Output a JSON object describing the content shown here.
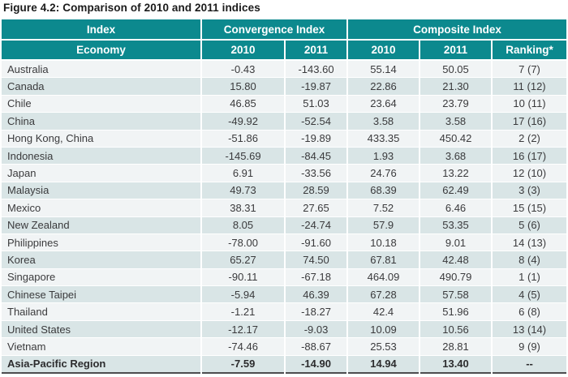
{
  "title": "Figure 4.2: Comparison of 2010 and 2011 indices",
  "colors": {
    "header_teal": "#0C898E",
    "row_light": "#F1F4F5",
    "row_alt": "#D9E5E6",
    "text_dark": "#3A3A3C",
    "header_text": "#FFFFFF",
    "bottom_border": "#4D4D4F"
  },
  "chart_data": {
    "type": "table",
    "title": "Figure 4.2: Comparison of 2010 and 2011 indices",
    "header_row1": {
      "index": "Index",
      "convergence": "Convergence Index",
      "composite": "Composite Index"
    },
    "header_row2": {
      "economy": "Economy",
      "conv_2010": "2010",
      "conv_2011": "2011",
      "comp_2010": "2010",
      "comp_2011": "2011",
      "ranking": "Ranking*"
    },
    "columns": [
      "Economy",
      "Convergence Index 2010",
      "Convergence Index 2011",
      "Composite Index 2010",
      "Composite Index 2011",
      "Ranking*"
    ],
    "rows": [
      {
        "economy": "Australia",
        "conv_2010": "-0.43",
        "conv_2011": "-143.60",
        "comp_2010": "55.14",
        "comp_2011": "50.05",
        "ranking": "7 (7)",
        "bold": false
      },
      {
        "economy": "Canada",
        "conv_2010": "15.80",
        "conv_2011": "-19.87",
        "comp_2010": "22.86",
        "comp_2011": "21.30",
        "ranking": "11 (12)",
        "bold": false
      },
      {
        "economy": "Chile",
        "conv_2010": "46.85",
        "conv_2011": "51.03",
        "comp_2010": "23.64",
        "comp_2011": "23.79",
        "ranking": "10 (11)",
        "bold": false
      },
      {
        "economy": "China",
        "conv_2010": "-49.92",
        "conv_2011": "-52.54",
        "comp_2010": "3.58",
        "comp_2011": "3.58",
        "ranking": "17 (16)",
        "bold": false
      },
      {
        "economy": "Hong Kong, China",
        "conv_2010": "-51.86",
        "conv_2011": "-19.89",
        "comp_2010": "433.35",
        "comp_2011": "450.42",
        "ranking": "2 (2)",
        "bold": false
      },
      {
        "economy": "Indonesia",
        "conv_2010": "-145.69",
        "conv_2011": "-84.45",
        "comp_2010": "1.93",
        "comp_2011": "3.68",
        "ranking": "16 (17)",
        "bold": false
      },
      {
        "economy": "Japan",
        "conv_2010": "6.91",
        "conv_2011": "-33.56",
        "comp_2010": "24.76",
        "comp_2011": "13.22",
        "ranking": "12 (10)",
        "bold": false
      },
      {
        "economy": "Malaysia",
        "conv_2010": "49.73",
        "conv_2011": "28.59",
        "comp_2010": "68.39",
        "comp_2011": "62.49",
        "ranking": "3 (3)",
        "bold": false
      },
      {
        "economy": "Mexico",
        "conv_2010": "38.31",
        "conv_2011": "27.65",
        "comp_2010": "7.52",
        "comp_2011": "6.46",
        "ranking": "15 (15)",
        "bold": false
      },
      {
        "economy": "New Zealand",
        "conv_2010": "8.05",
        "conv_2011": "-24.74",
        "comp_2010": "57.9",
        "comp_2011": "53.35",
        "ranking": "5 (6)",
        "bold": false
      },
      {
        "economy": "Philippines",
        "conv_2010": "-78.00",
        "conv_2011": "-91.60",
        "comp_2010": "10.18",
        "comp_2011": "9.01",
        "ranking": "14 (13)",
        "bold": false
      },
      {
        "economy": "Korea",
        "conv_2010": "65.27",
        "conv_2011": "74.50",
        "comp_2010": "67.81",
        "comp_2011": "42.48",
        "ranking": "8 (4)",
        "bold": false
      },
      {
        "economy": "Singapore",
        "conv_2010": "-90.11",
        "conv_2011": "-67.18",
        "comp_2010": "464.09",
        "comp_2011": "490.79",
        "ranking": "1 (1)",
        "bold": false
      },
      {
        "economy": "Chinese Taipei",
        "conv_2010": "-5.94",
        "conv_2011": "46.39",
        "comp_2010": "67.28",
        "comp_2011": "57.58",
        "ranking": "4 (5)",
        "bold": false
      },
      {
        "economy": "Thailand",
        "conv_2010": "-1.21",
        "conv_2011": "-18.27",
        "comp_2010": "42.4",
        "comp_2011": "51.96",
        "ranking": "6 (8)",
        "bold": false
      },
      {
        "economy": "United States",
        "conv_2010": "-12.17",
        "conv_2011": "-9.03",
        "comp_2010": "10.09",
        "comp_2011": "10.56",
        "ranking": "13 (14)",
        "bold": false
      },
      {
        "economy": "Vietnam",
        "conv_2010": "-74.46",
        "conv_2011": "-88.67",
        "comp_2010": "25.53",
        "comp_2011": "28.81",
        "ranking": "9 (9)",
        "bold": false
      },
      {
        "economy": "Asia-Pacific Region",
        "conv_2010": "-7.59",
        "conv_2011": "-14.90",
        "comp_2010": "14.94",
        "comp_2011": "13.40",
        "ranking": "--",
        "bold": true
      }
    ]
  }
}
